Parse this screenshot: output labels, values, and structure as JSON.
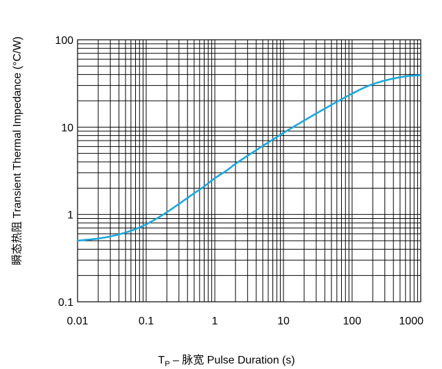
{
  "chart_data": {
    "type": "line",
    "title": "",
    "xlabel": {
      "main": "T",
      "sub": "P",
      "rest": " – 脉宽 Pulse Duration (s)"
    },
    "ylabel": "瞬态热阻 Transient Thermal Impedance (°C/W)",
    "x_scale": "log",
    "y_scale": "log",
    "xlim": [
      0.01,
      1000
    ],
    "ylim": [
      0.1,
      100
    ],
    "x_ticks": [
      0.01,
      0.1,
      1,
      10,
      100,
      1000
    ],
    "x_tick_labels": [
      "0.01",
      "0.1",
      "1",
      "10",
      "100",
      "1000"
    ],
    "y_ticks": [
      0.1,
      1,
      10,
      100
    ],
    "y_tick_labels": [
      "0.1",
      "1",
      "10",
      "100"
    ],
    "grid": true,
    "line_color": "#1aa7e0",
    "series": [
      {
        "x": [
          0.01,
          0.02,
          0.03,
          0.05,
          0.07,
          0.1,
          0.15,
          0.2,
          0.3,
          0.5,
          0.7,
          1,
          1.5,
          2,
          3,
          5,
          7,
          10,
          15,
          20,
          30,
          50,
          70,
          100,
          150,
          200,
          300,
          500,
          700,
          1000
        ],
        "y": [
          0.5,
          0.53,
          0.56,
          0.62,
          0.68,
          0.77,
          0.92,
          1.06,
          1.32,
          1.75,
          2.1,
          2.6,
          3.2,
          3.8,
          4.7,
          6.1,
          7.2,
          8.6,
          10.4,
          11.9,
          14.3,
          18.0,
          20.8,
          24.2,
          28.3,
          31.0,
          34.2,
          37.3,
          38.6,
          39.3
        ]
      }
    ]
  }
}
